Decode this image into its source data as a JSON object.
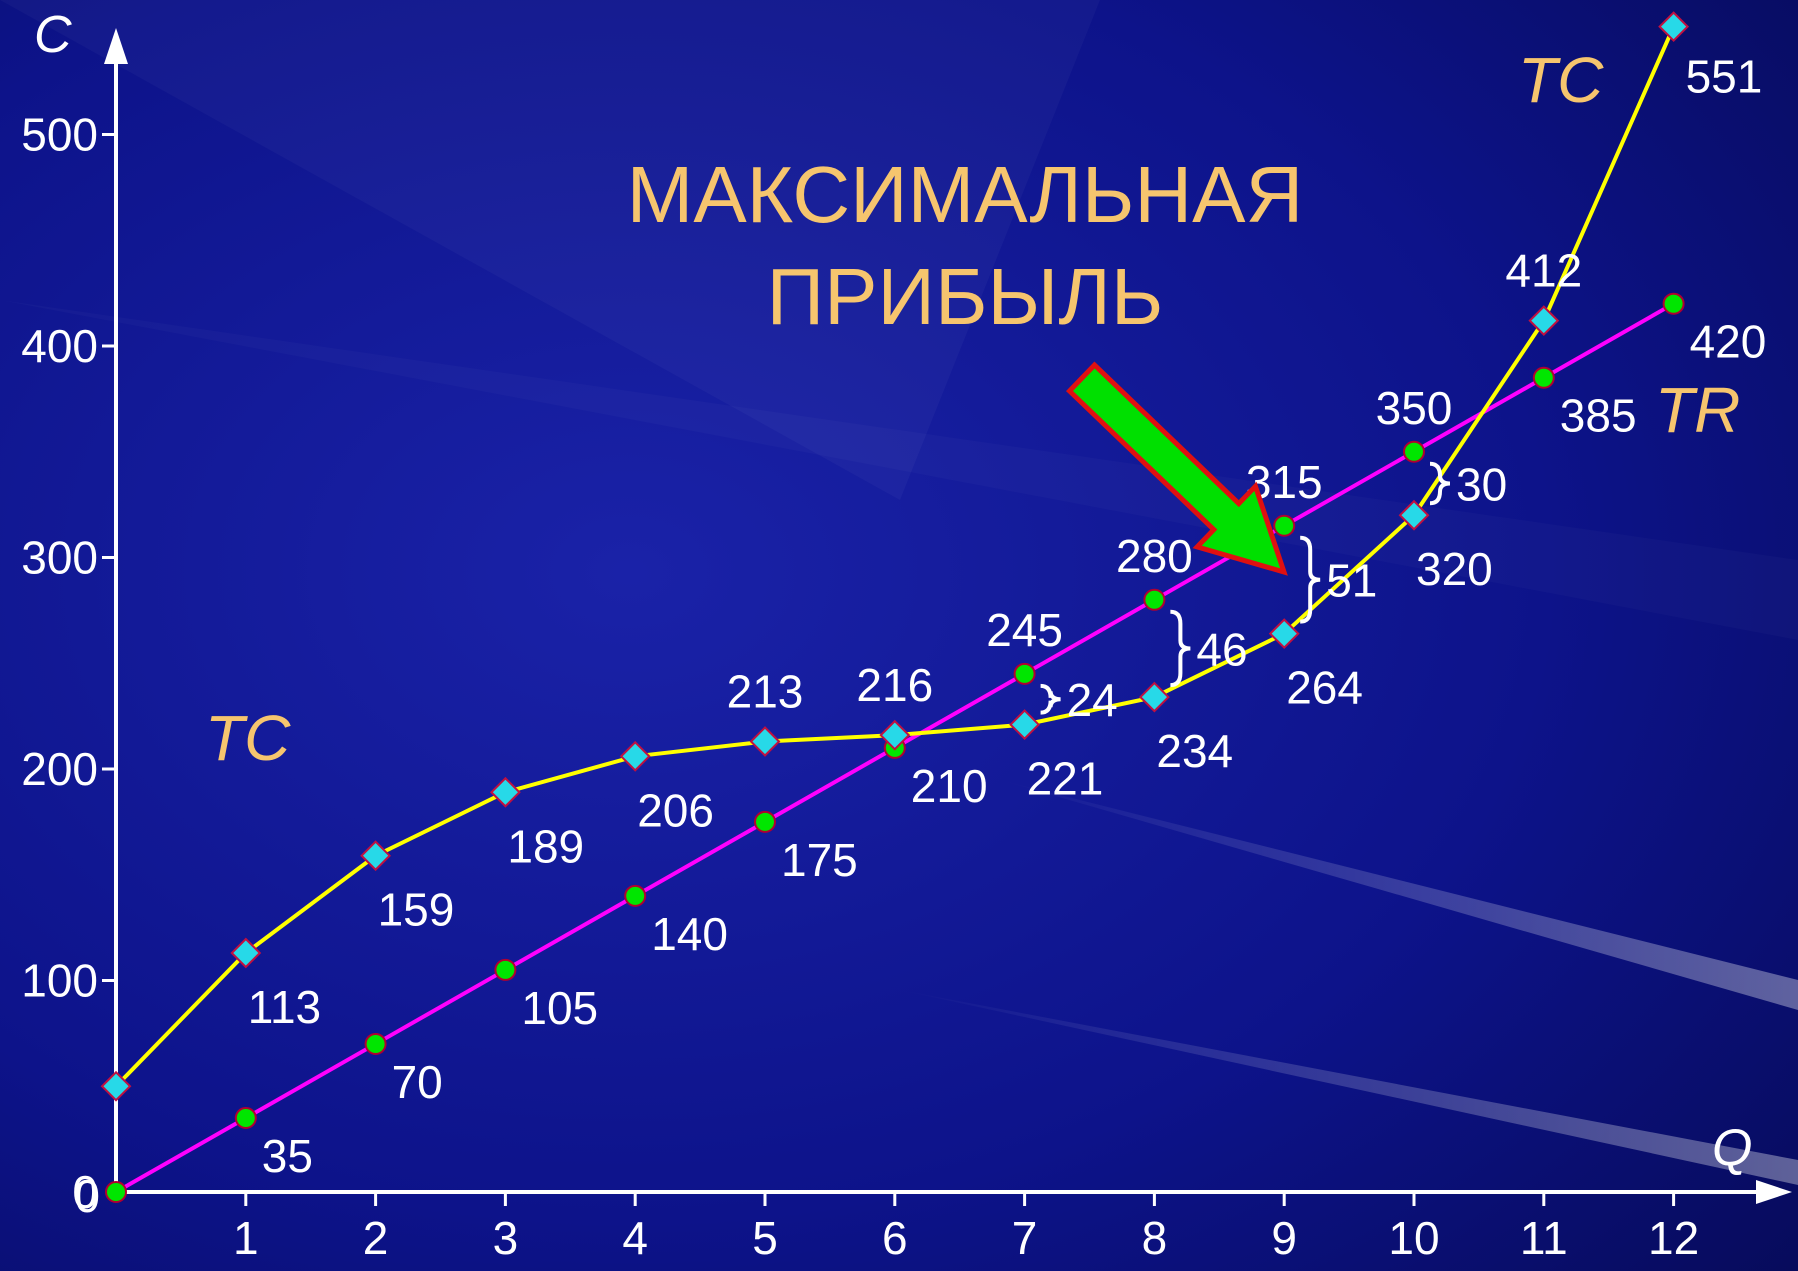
{
  "chart_data": {
    "type": "line",
    "title": "",
    "axes": {
      "x_name": "Q",
      "y_name": "C",
      "x_ticks": [
        "1",
        "2",
        "3",
        "4",
        "5",
        "6",
        "7",
        "8",
        "9",
        "10",
        "11",
        "12"
      ],
      "y_ticks": [
        "0",
        "100",
        "200",
        "300",
        "400",
        "500"
      ],
      "xlim": [
        0,
        12.3
      ],
      "ylim": [
        0,
        550
      ]
    },
    "x": [
      0,
      1,
      2,
      3,
      4,
      5,
      6,
      7,
      8,
      9,
      10,
      11,
      12
    ],
    "series": [
      {
        "name": "TC",
        "color": "#ffff00",
        "marker": "diamond",
        "marker_color": "#27d9e8",
        "values": [
          50,
          113,
          159,
          189,
          206,
          213,
          216,
          221,
          234,
          264,
          320,
          412,
          551
        ],
        "labels": [
          "",
          "113",
          "159",
          "189",
          "206",
          "213",
          "216",
          "221",
          "234",
          "264",
          "320",
          "412",
          "551"
        ]
      },
      {
        "name": "TR",
        "color": "#ff00ff",
        "marker": "circle",
        "marker_color": "#00e600",
        "values": [
          0,
          35,
          70,
          105,
          140,
          175,
          210,
          245,
          280,
          315,
          350,
          385,
          420
        ],
        "labels": [
          "0",
          "35",
          "70",
          "105",
          "140",
          "175",
          "210",
          "245",
          "280",
          "315",
          "350",
          "385",
          "420"
        ]
      }
    ],
    "series_labels": {
      "tc_lower": "TC",
      "tc_upper": "TC",
      "tr": "TR"
    },
    "profit_gaps": [
      {
        "x": 7,
        "value": "24"
      },
      {
        "x": 8,
        "value": "46"
      },
      {
        "x": 9,
        "value": "51"
      },
      {
        "x": 10,
        "value": "30"
      }
    ],
    "annotation": {
      "line1": "МАКСИМАЛЬНАЯ",
      "line2": "ПРИБЫЛЬ",
      "arrow_fill": "#00e000",
      "arrow_stroke": "#e01010"
    },
    "colors": {
      "background": "#0a0f7a",
      "axis": "#ffffff",
      "accent_text": "#f6c56e"
    },
    "grid": false
  }
}
